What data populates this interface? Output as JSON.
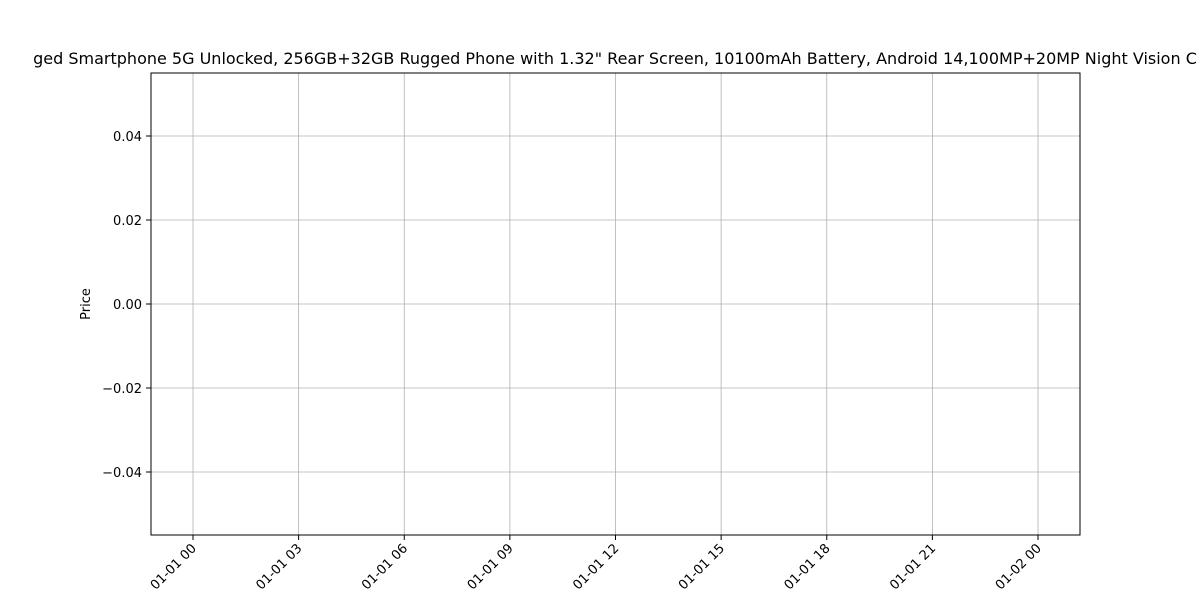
{
  "chart_data": {
    "type": "line",
    "title": "ged Smartphone 5G Unlocked, 256GB+32GB Rugged Phone with 1.32\" Rear Screen, 10100mAh Battery, Android 14,100MP+20MP Night Vision C",
    "xlabel": "",
    "ylabel": "Price",
    "x_ticks": [
      "01-01 00",
      "01-01 03",
      "01-01 06",
      "01-01 09",
      "01-01 12",
      "01-01 15",
      "01-01 18",
      "01-01 21",
      "01-02 00"
    ],
    "y_ticks": [
      "0.04",
      "0.02",
      "0.00",
      "−0.02",
      "−0.04"
    ],
    "y_tick_values": [
      0.04,
      0.02,
      0.0,
      -0.02,
      -0.04
    ],
    "ylim": [
      -0.055,
      0.055
    ],
    "grid": true,
    "series": [
      {
        "values": []
      }
    ]
  }
}
